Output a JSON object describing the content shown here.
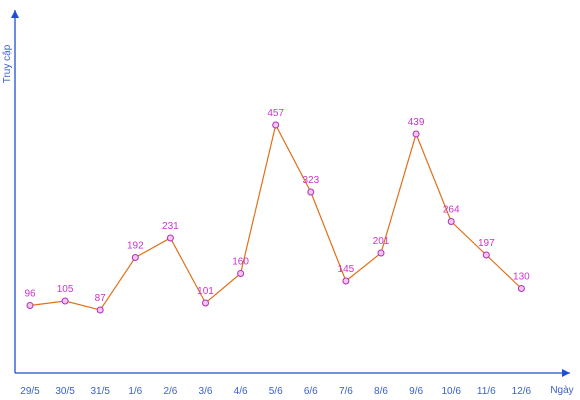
{
  "chart_data": {
    "type": "line",
    "title": "",
    "xlabel": "Ngày",
    "ylabel": "Truy cập",
    "grid": false,
    "legend": "none",
    "ylim": [
      0,
      560
    ],
    "categories": [
      "29/5",
      "30/5",
      "31/5",
      "1/6",
      "2/6",
      "3/6",
      "4/6",
      "5/6",
      "6/6",
      "7/6",
      "8/6",
      "9/6",
      "10/6",
      "11/6",
      "12/6"
    ],
    "series": [
      {
        "values": [
          96,
          105,
          87,
          192,
          231,
          101,
          160,
          457,
          323,
          145,
          201,
          439,
          264,
          197,
          130
        ]
      }
    ],
    "colors": {
      "axis": "#1f4fd1",
      "tick_text": "#3a5fc8",
      "line": "#e0701a",
      "marker_fill": "#f2c6ee",
      "marker_stroke": "#b030b8",
      "data_label": "#cc33cc"
    }
  }
}
